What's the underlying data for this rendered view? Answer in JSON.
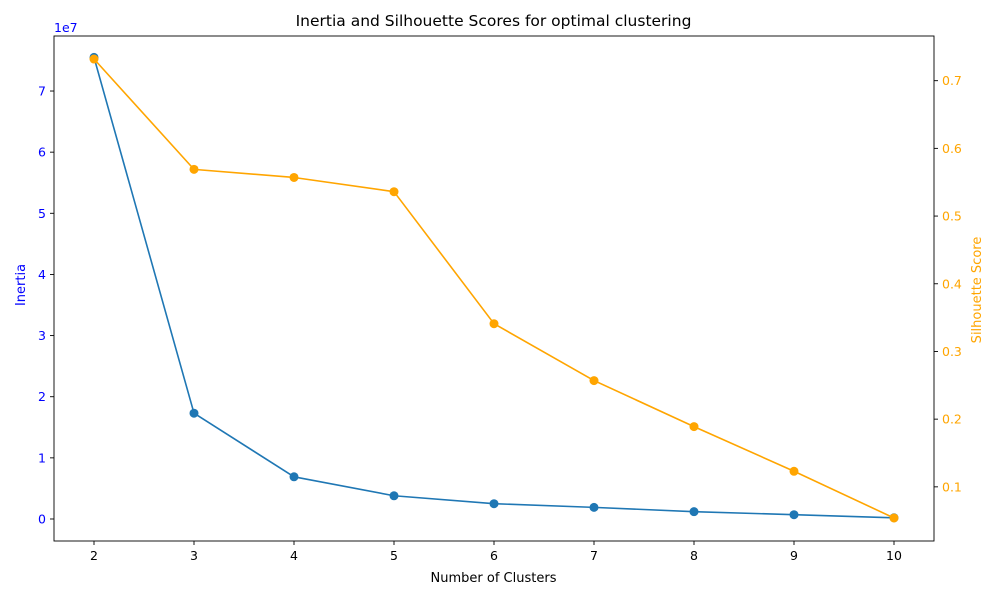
{
  "chart_data": {
    "type": "line",
    "title": "Inertia and Silhouette Scores for optimal clustering",
    "xlabel": "Number of Clusters",
    "x": [
      2,
      3,
      4,
      5,
      6,
      7,
      8,
      9,
      10
    ],
    "xlim": [
      1.6,
      10.4
    ],
    "xticks": [
      "2",
      "3",
      "4",
      "5",
      "6",
      "7",
      "8",
      "9",
      "10"
    ],
    "series": [
      {
        "name": "Inertia",
        "axis": "left",
        "color": "#1f77b4",
        "values": [
          75500000,
          17300000,
          6900000,
          3800000,
          2500000,
          1900000,
          1200000,
          700000,
          200000
        ]
      },
      {
        "name": "Silhouette Score",
        "axis": "right",
        "color": "#ffa500",
        "values": [
          0.732,
          0.569,
          0.557,
          0.536,
          0.341,
          0.257,
          0.189,
          0.123,
          0.054
        ]
      }
    ],
    "y_left": {
      "label": "Inertia",
      "color": "#0000ff",
      "ylim": [
        -3600000,
        79000000
      ],
      "ticks": [
        0,
        10000000,
        20000000,
        30000000,
        40000000,
        50000000,
        60000000,
        70000000
      ],
      "tick_labels": [
        "0",
        "1",
        "2",
        "3",
        "4",
        "5",
        "6",
        "7"
      ],
      "offset_text": "1e7"
    },
    "y_right": {
      "label": "Silhouette Score",
      "color": "#ffa500",
      "ylim": [
        0.02,
        0.766
      ],
      "ticks": [
        0.1,
        0.2,
        0.3,
        0.4,
        0.5,
        0.6,
        0.7
      ],
      "tick_labels": [
        "0.1",
        "0.2",
        "0.3",
        "0.4",
        "0.5",
        "0.6",
        "0.7"
      ]
    },
    "grid": false,
    "legend": "none"
  }
}
